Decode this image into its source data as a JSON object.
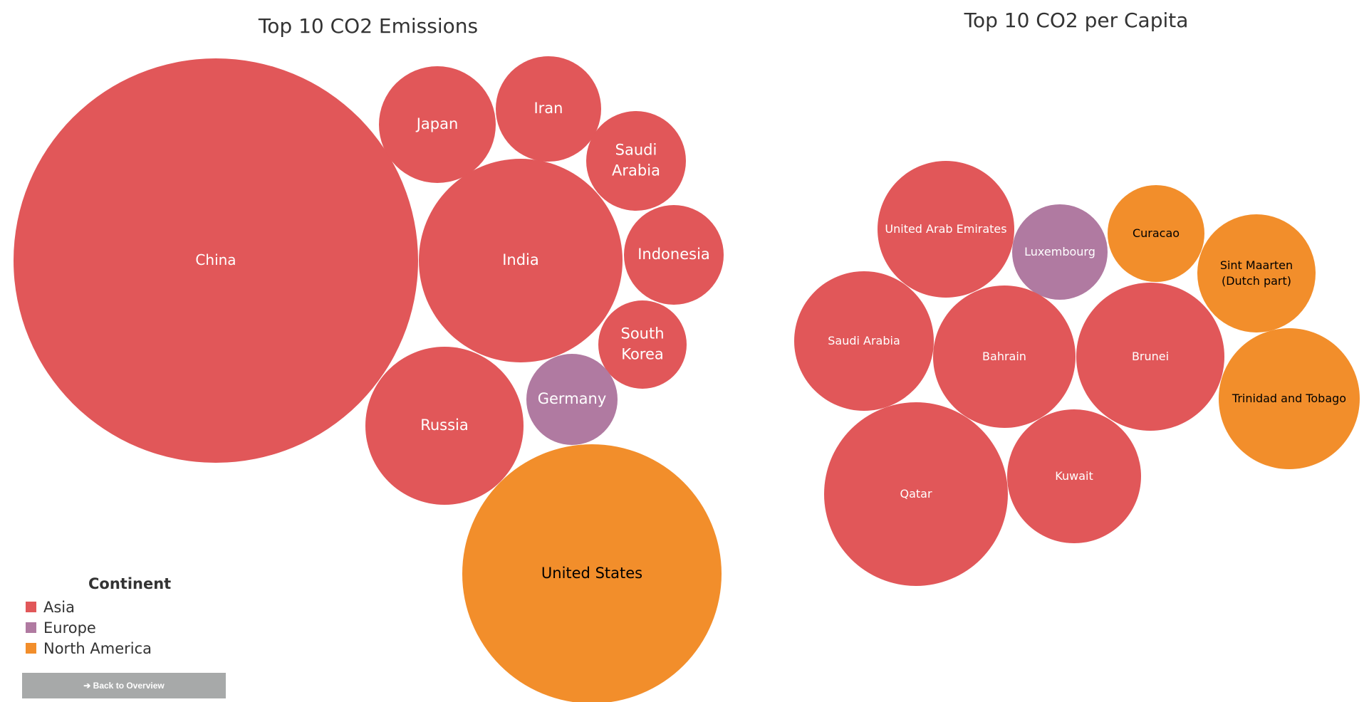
{
  "legend": {
    "title": "Continent",
    "items": [
      {
        "label": "Asia",
        "color": "#e15759"
      },
      {
        "label": "Europe",
        "color": "#b07aa1"
      },
      {
        "label": "North America",
        "color": "#f28e2b"
      }
    ]
  },
  "back_button": {
    "label": "➔ Back to Overview"
  },
  "chart_data": [
    {
      "type": "bubble",
      "title": "Top 10 CO2 Emissions",
      "series": [
        {
          "name": "China",
          "continent": "Asia"
        },
        {
          "name": "Japan",
          "continent": "Asia"
        },
        {
          "name": "Iran",
          "continent": "Asia"
        },
        {
          "name": "Saudi Arabia",
          "continent": "Asia"
        },
        {
          "name": "India",
          "continent": "Asia"
        },
        {
          "name": "Indonesia",
          "continent": "Asia"
        },
        {
          "name": "South Korea",
          "continent": "Asia"
        },
        {
          "name": "Russia",
          "continent": "Asia"
        },
        {
          "name": "Germany",
          "continent": "Europe"
        },
        {
          "name": "United States",
          "continent": "North America"
        }
      ]
    },
    {
      "type": "bubble",
      "title": "Top 10 CO2 per Capita",
      "series": [
        {
          "name": "United Arab Emirates",
          "continent": "Asia"
        },
        {
          "name": "Luxembourg",
          "continent": "Europe"
        },
        {
          "name": "Curacao",
          "continent": "North America"
        },
        {
          "name": "Sint Maarten (Dutch part)",
          "continent": "North America"
        },
        {
          "name": "Saudi Arabia",
          "continent": "Asia"
        },
        {
          "name": "Bahrain",
          "continent": "Asia"
        },
        {
          "name": "Brunei",
          "continent": "Asia"
        },
        {
          "name": "Trinidad and Tobago",
          "continent": "North America"
        },
        {
          "name": "Qatar",
          "continent": "Asia"
        },
        {
          "name": "Kuwait",
          "continent": "Asia"
        }
      ]
    }
  ]
}
